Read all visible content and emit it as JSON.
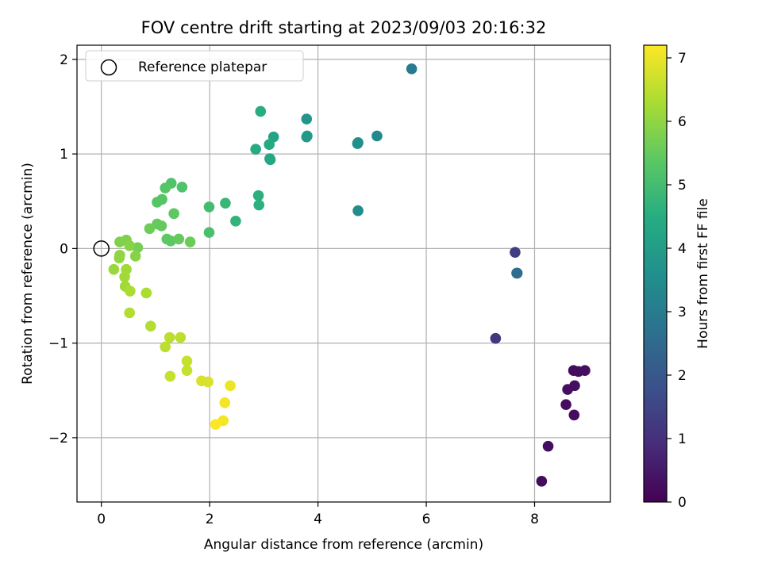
{
  "chart_data": {
    "type": "scatter",
    "title": "FOV centre drift starting at 2023/09/03 20:16:32",
    "xlabel": "Angular distance from reference (arcmin)",
    "ylabel": "Rotation from reference (arcmin)",
    "xlim": [
      -0.45,
      9.4
    ],
    "ylim": [
      -2.68,
      2.15
    ],
    "xticks": [
      0,
      2,
      4,
      6,
      8
    ],
    "yticks": [
      -2,
      -1,
      0,
      1,
      2
    ],
    "xtick_labels": [
      "0",
      "2",
      "4",
      "6",
      "8"
    ],
    "ytick_labels": [
      "−2",
      "−1",
      "0",
      "1",
      "2"
    ],
    "grid": true,
    "legend": {
      "position": "top-left",
      "label": "Reference platepar"
    },
    "reference_point": {
      "x": 0,
      "y": 0
    },
    "colorbar": {
      "label": "Hours from first FF file",
      "min": 0,
      "max": 7.2,
      "ticks": [
        0,
        1,
        2,
        3,
        4,
        5,
        6,
        7
      ],
      "colormap": "viridis"
    },
    "points": [
      {
        "x": 8.13,
        "y": -2.46,
        "h": 0.2
      },
      {
        "x": 8.25,
        "y": -2.09,
        "h": 0.3
      },
      {
        "x": 8.73,
        "y": -1.76,
        "h": 0.25
      },
      {
        "x": 8.58,
        "y": -1.65,
        "h": 0.25
      },
      {
        "x": 8.61,
        "y": -1.49,
        "h": 0.3
      },
      {
        "x": 8.74,
        "y": -1.45,
        "h": 0.3
      },
      {
        "x": 8.72,
        "y": -1.29,
        "h": 0.2
      },
      {
        "x": 8.81,
        "y": -1.3,
        "h": 0.25
      },
      {
        "x": 8.93,
        "y": -1.29,
        "h": 0.3
      },
      {
        "x": 7.28,
        "y": -0.95,
        "h": 1.2
      },
      {
        "x": 7.64,
        "y": -0.04,
        "h": 1.3
      },
      {
        "x": 7.67,
        "y": -0.26,
        "h": 2.5
      },
      {
        "x": 7.68,
        "y": -0.26,
        "h": 2.6
      },
      {
        "x": 5.73,
        "y": 1.9,
        "h": 3.0
      },
      {
        "x": 5.09,
        "y": 1.19,
        "h": 3.4
      },
      {
        "x": 4.73,
        "y": 1.11,
        "h": 3.5
      },
      {
        "x": 4.74,
        "y": 1.12,
        "h": 3.6
      },
      {
        "x": 4.74,
        "y": 0.4,
        "h": 3.5
      },
      {
        "x": 3.79,
        "y": 1.37,
        "h": 3.8
      },
      {
        "x": 3.79,
        "y": 1.18,
        "h": 3.9
      },
      {
        "x": 3.8,
        "y": 1.19,
        "h": 3.9
      },
      {
        "x": 3.18,
        "y": 1.18,
        "h": 4.2
      },
      {
        "x": 3.11,
        "y": 0.95,
        "h": 4.3
      },
      {
        "x": 3.12,
        "y": 0.94,
        "h": 4.3
      },
      {
        "x": 3.1,
        "y": 1.1,
        "h": 4.4
      },
      {
        "x": 2.94,
        "y": 1.45,
        "h": 4.5
      },
      {
        "x": 2.85,
        "y": 1.05,
        "h": 4.4
      },
      {
        "x": 2.9,
        "y": 0.56,
        "h": 4.6
      },
      {
        "x": 2.91,
        "y": 0.46,
        "h": 4.6
      },
      {
        "x": 2.48,
        "y": 0.29,
        "h": 4.7
      },
      {
        "x": 2.29,
        "y": 0.48,
        "h": 4.8
      },
      {
        "x": 1.99,
        "y": 0.44,
        "h": 5.0
      },
      {
        "x": 1.99,
        "y": 0.17,
        "h": 5.1
      },
      {
        "x": 1.49,
        "y": 0.65,
        "h": 5.2
      },
      {
        "x": 1.29,
        "y": 0.69,
        "h": 5.2
      },
      {
        "x": 1.18,
        "y": 0.64,
        "h": 5.3
      },
      {
        "x": 1.12,
        "y": 0.52,
        "h": 5.3
      },
      {
        "x": 1.03,
        "y": 0.49,
        "h": 5.3
      },
      {
        "x": 1.34,
        "y": 0.37,
        "h": 5.4
      },
      {
        "x": 1.03,
        "y": 0.26,
        "h": 5.5
      },
      {
        "x": 1.11,
        "y": 0.24,
        "h": 5.5
      },
      {
        "x": 0.89,
        "y": 0.21,
        "h": 5.6
      },
      {
        "x": 1.21,
        "y": 0.1,
        "h": 5.4
      },
      {
        "x": 1.28,
        "y": 0.08,
        "h": 5.4
      },
      {
        "x": 1.43,
        "y": 0.1,
        "h": 5.5
      },
      {
        "x": 1.64,
        "y": 0.07,
        "h": 5.6
      },
      {
        "x": 0.67,
        "y": 0.01,
        "h": 5.7
      },
      {
        "x": 0.46,
        "y": 0.09,
        "h": 5.8
      },
      {
        "x": 0.34,
        "y": 0.07,
        "h": 5.8
      },
      {
        "x": 0.52,
        "y": 0.03,
        "h": 5.9
      },
      {
        "x": 0.63,
        "y": -0.08,
        "h": 5.9
      },
      {
        "x": 0.34,
        "y": -0.07,
        "h": 6.0
      },
      {
        "x": 0.33,
        "y": -0.1,
        "h": 6.0
      },
      {
        "x": 0.23,
        "y": -0.22,
        "h": 6.1
      },
      {
        "x": 0.46,
        "y": -0.22,
        "h": 6.2
      },
      {
        "x": 0.43,
        "y": -0.3,
        "h": 6.2
      },
      {
        "x": 0.44,
        "y": -0.4,
        "h": 6.2
      },
      {
        "x": 0.53,
        "y": -0.45,
        "h": 6.3
      },
      {
        "x": 0.83,
        "y": -0.47,
        "h": 6.3
      },
      {
        "x": 0.52,
        "y": -0.68,
        "h": 6.4
      },
      {
        "x": 0.91,
        "y": -0.82,
        "h": 6.4
      },
      {
        "x": 1.26,
        "y": -0.94,
        "h": 6.5
      },
      {
        "x": 1.46,
        "y": -0.94,
        "h": 6.5
      },
      {
        "x": 1.18,
        "y": -1.04,
        "h": 6.5
      },
      {
        "x": 1.58,
        "y": -1.19,
        "h": 6.6
      },
      {
        "x": 1.58,
        "y": -1.29,
        "h": 6.6
      },
      {
        "x": 1.27,
        "y": -1.35,
        "h": 6.6
      },
      {
        "x": 1.85,
        "y": -1.4,
        "h": 6.8
      },
      {
        "x": 1.97,
        "y": -1.41,
        "h": 6.8
      },
      {
        "x": 2.38,
        "y": -1.45,
        "h": 7.0
      },
      {
        "x": 2.28,
        "y": -1.63,
        "h": 7.1
      },
      {
        "x": 2.25,
        "y": -1.82,
        "h": 7.1
      },
      {
        "x": 2.11,
        "y": -1.86,
        "h": 7.2
      }
    ]
  }
}
